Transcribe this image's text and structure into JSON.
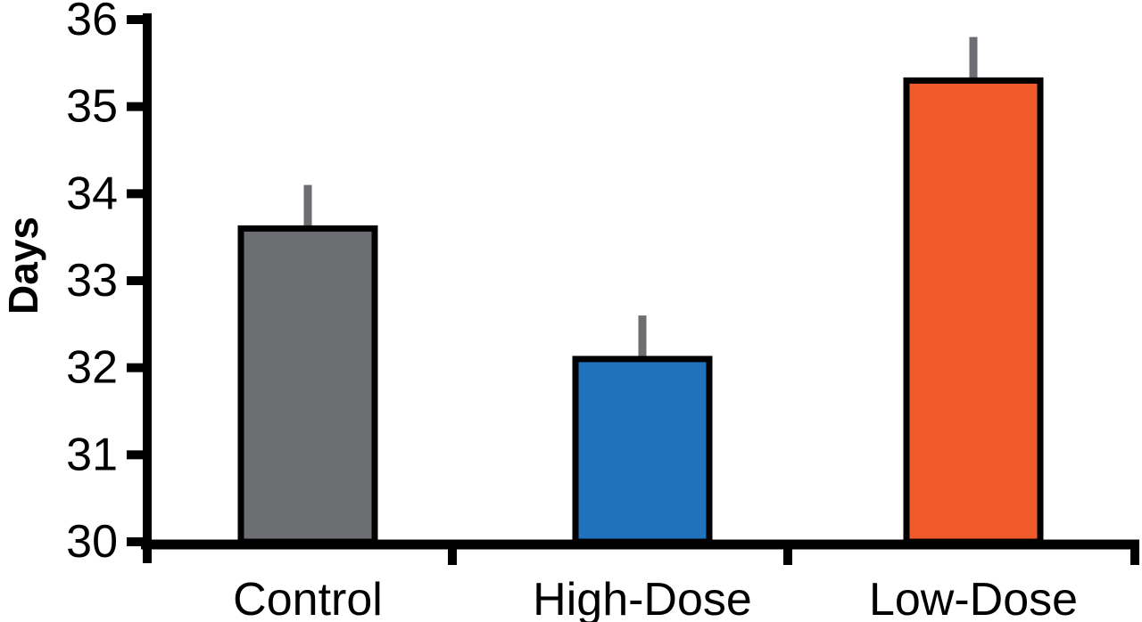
{
  "chart_data": {
    "type": "bar",
    "categories": [
      "Control",
      "High-Dose",
      "Low-Dose"
    ],
    "values": [
      33.6,
      32.1,
      35.3
    ],
    "error_upper": [
      0.5,
      0.5,
      0.5
    ],
    "title": "",
    "xlabel": "",
    "ylabel": "Days",
    "ylim": [
      30,
      36
    ],
    "yticks": [
      30,
      31,
      32,
      33,
      34,
      35,
      36
    ],
    "grid": false,
    "legend": "none",
    "bar_colors": [
      "#6D6E71",
      "#2172BC",
      "#F15A2B"
    ],
    "bar_outline_color": "#000000",
    "error_bar_color": "#6D6E71",
    "axis_color": "#000000",
    "background_color": "#FFFFFF"
  }
}
